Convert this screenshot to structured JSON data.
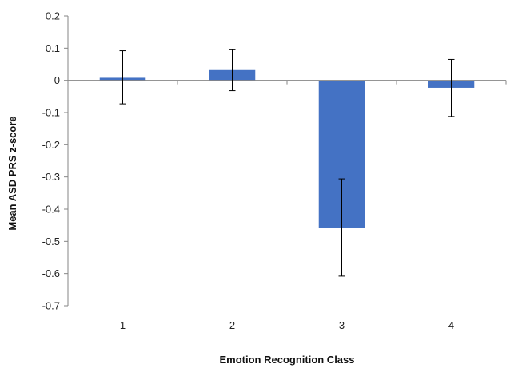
{
  "chart_data": {
    "type": "bar",
    "title": "",
    "xlabel": "Emotion Recognition Class",
    "ylabel": "Mean ASD PRS z-score",
    "categories": [
      "1",
      "2",
      "3",
      "4"
    ],
    "values": [
      0.008,
      0.032,
      -0.457,
      -0.023
    ],
    "error_low": [
      -0.073,
      -0.032,
      -0.608,
      -0.112
    ],
    "error_high": [
      0.092,
      0.095,
      -0.306,
      0.065
    ],
    "ylim": [
      -0.7,
      0.2
    ],
    "yticks": [
      "0.2",
      "0.1",
      "0",
      "-0.1",
      "-0.2",
      "-0.3",
      "-0.4",
      "-0.5",
      "-0.6",
      "-0.7"
    ],
    "grid": false,
    "legend": "none",
    "bar_color": "#4472C4"
  }
}
